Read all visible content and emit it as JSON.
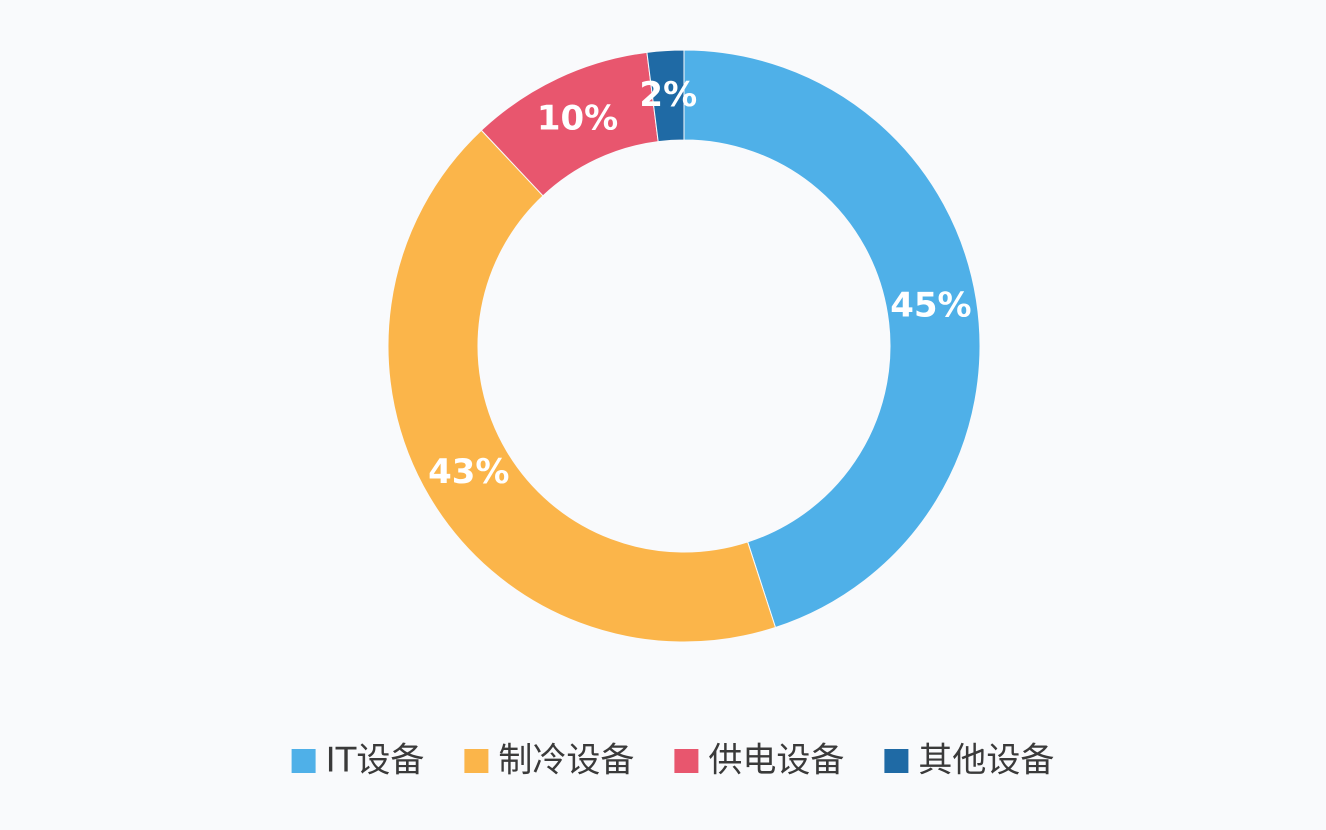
{
  "chart_data": {
    "type": "donut",
    "categories": [
      "IT设备",
      "制冷设备",
      "供电设备",
      "其他设备"
    ],
    "values": [
      45,
      43,
      10,
      2
    ],
    "value_labels": [
      "45%",
      "43%",
      "10%",
      "2%"
    ],
    "colors": [
      "#4fb0e8",
      "#fbb54a",
      "#e8566e",
      "#1f6aa5"
    ],
    "legend": "bottom"
  }
}
